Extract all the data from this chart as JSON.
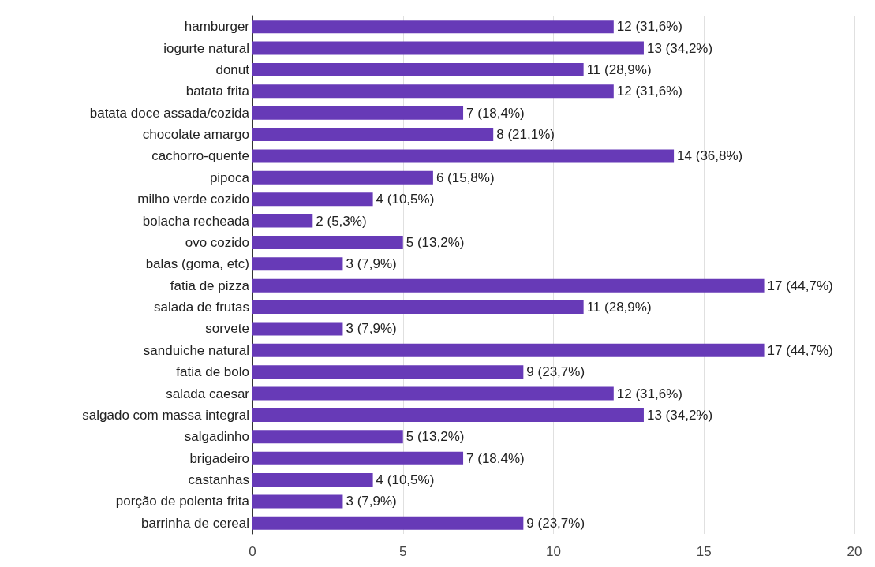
{
  "chart_data": {
    "type": "bar",
    "orientation": "horizontal",
    "categories": [
      "hamburger",
      "iogurte natural",
      "donut",
      "batata frita",
      "batata doce assada/cozida",
      "chocolate amargo",
      "cachorro-quente",
      "pipoca",
      "milho verde cozido",
      "bolacha recheada",
      "ovo cozido",
      "balas (goma, etc)",
      "fatia de pizza",
      "salada de frutas",
      "sorvete",
      "sanduiche natural",
      "fatia de bolo",
      "salada caesar",
      "salgado com massa integral",
      "salgadinho",
      "brigadeiro",
      "castanhas",
      "porção de polenta frita",
      "barrinha de cereal"
    ],
    "values": [
      12,
      13,
      11,
      12,
      7,
      8,
      14,
      6,
      4,
      2,
      5,
      3,
      17,
      11,
      3,
      17,
      9,
      12,
      13,
      5,
      7,
      4,
      3,
      9
    ],
    "value_labels": [
      "12 (31,6%)",
      "13 (34,2%)",
      "11 (28,9%)",
      "12 (31,6%)",
      "7 (18,4%)",
      "8 (21,1%)",
      "14 (36,8%)",
      "6 (15,8%)",
      "4 (10,5%)",
      "2 (5,3%)",
      "5 (13,2%)",
      "3 (7,9%)",
      "17 (44,7%)",
      "11 (28,9%)",
      "3 (7,9%)",
      "17 (44,7%)",
      "9 (23,7%)",
      "12 (31,6%)",
      "13 (34,2%)",
      "5 (13,2%)",
      "7 (18,4%)",
      "4 (10,5%)",
      "3 (7,9%)",
      "9 (23,7%)"
    ],
    "color": "#673ab7",
    "xlim": [
      0,
      20
    ],
    "xticks": [
      0,
      5,
      10,
      15,
      20
    ],
    "grid": "x"
  }
}
